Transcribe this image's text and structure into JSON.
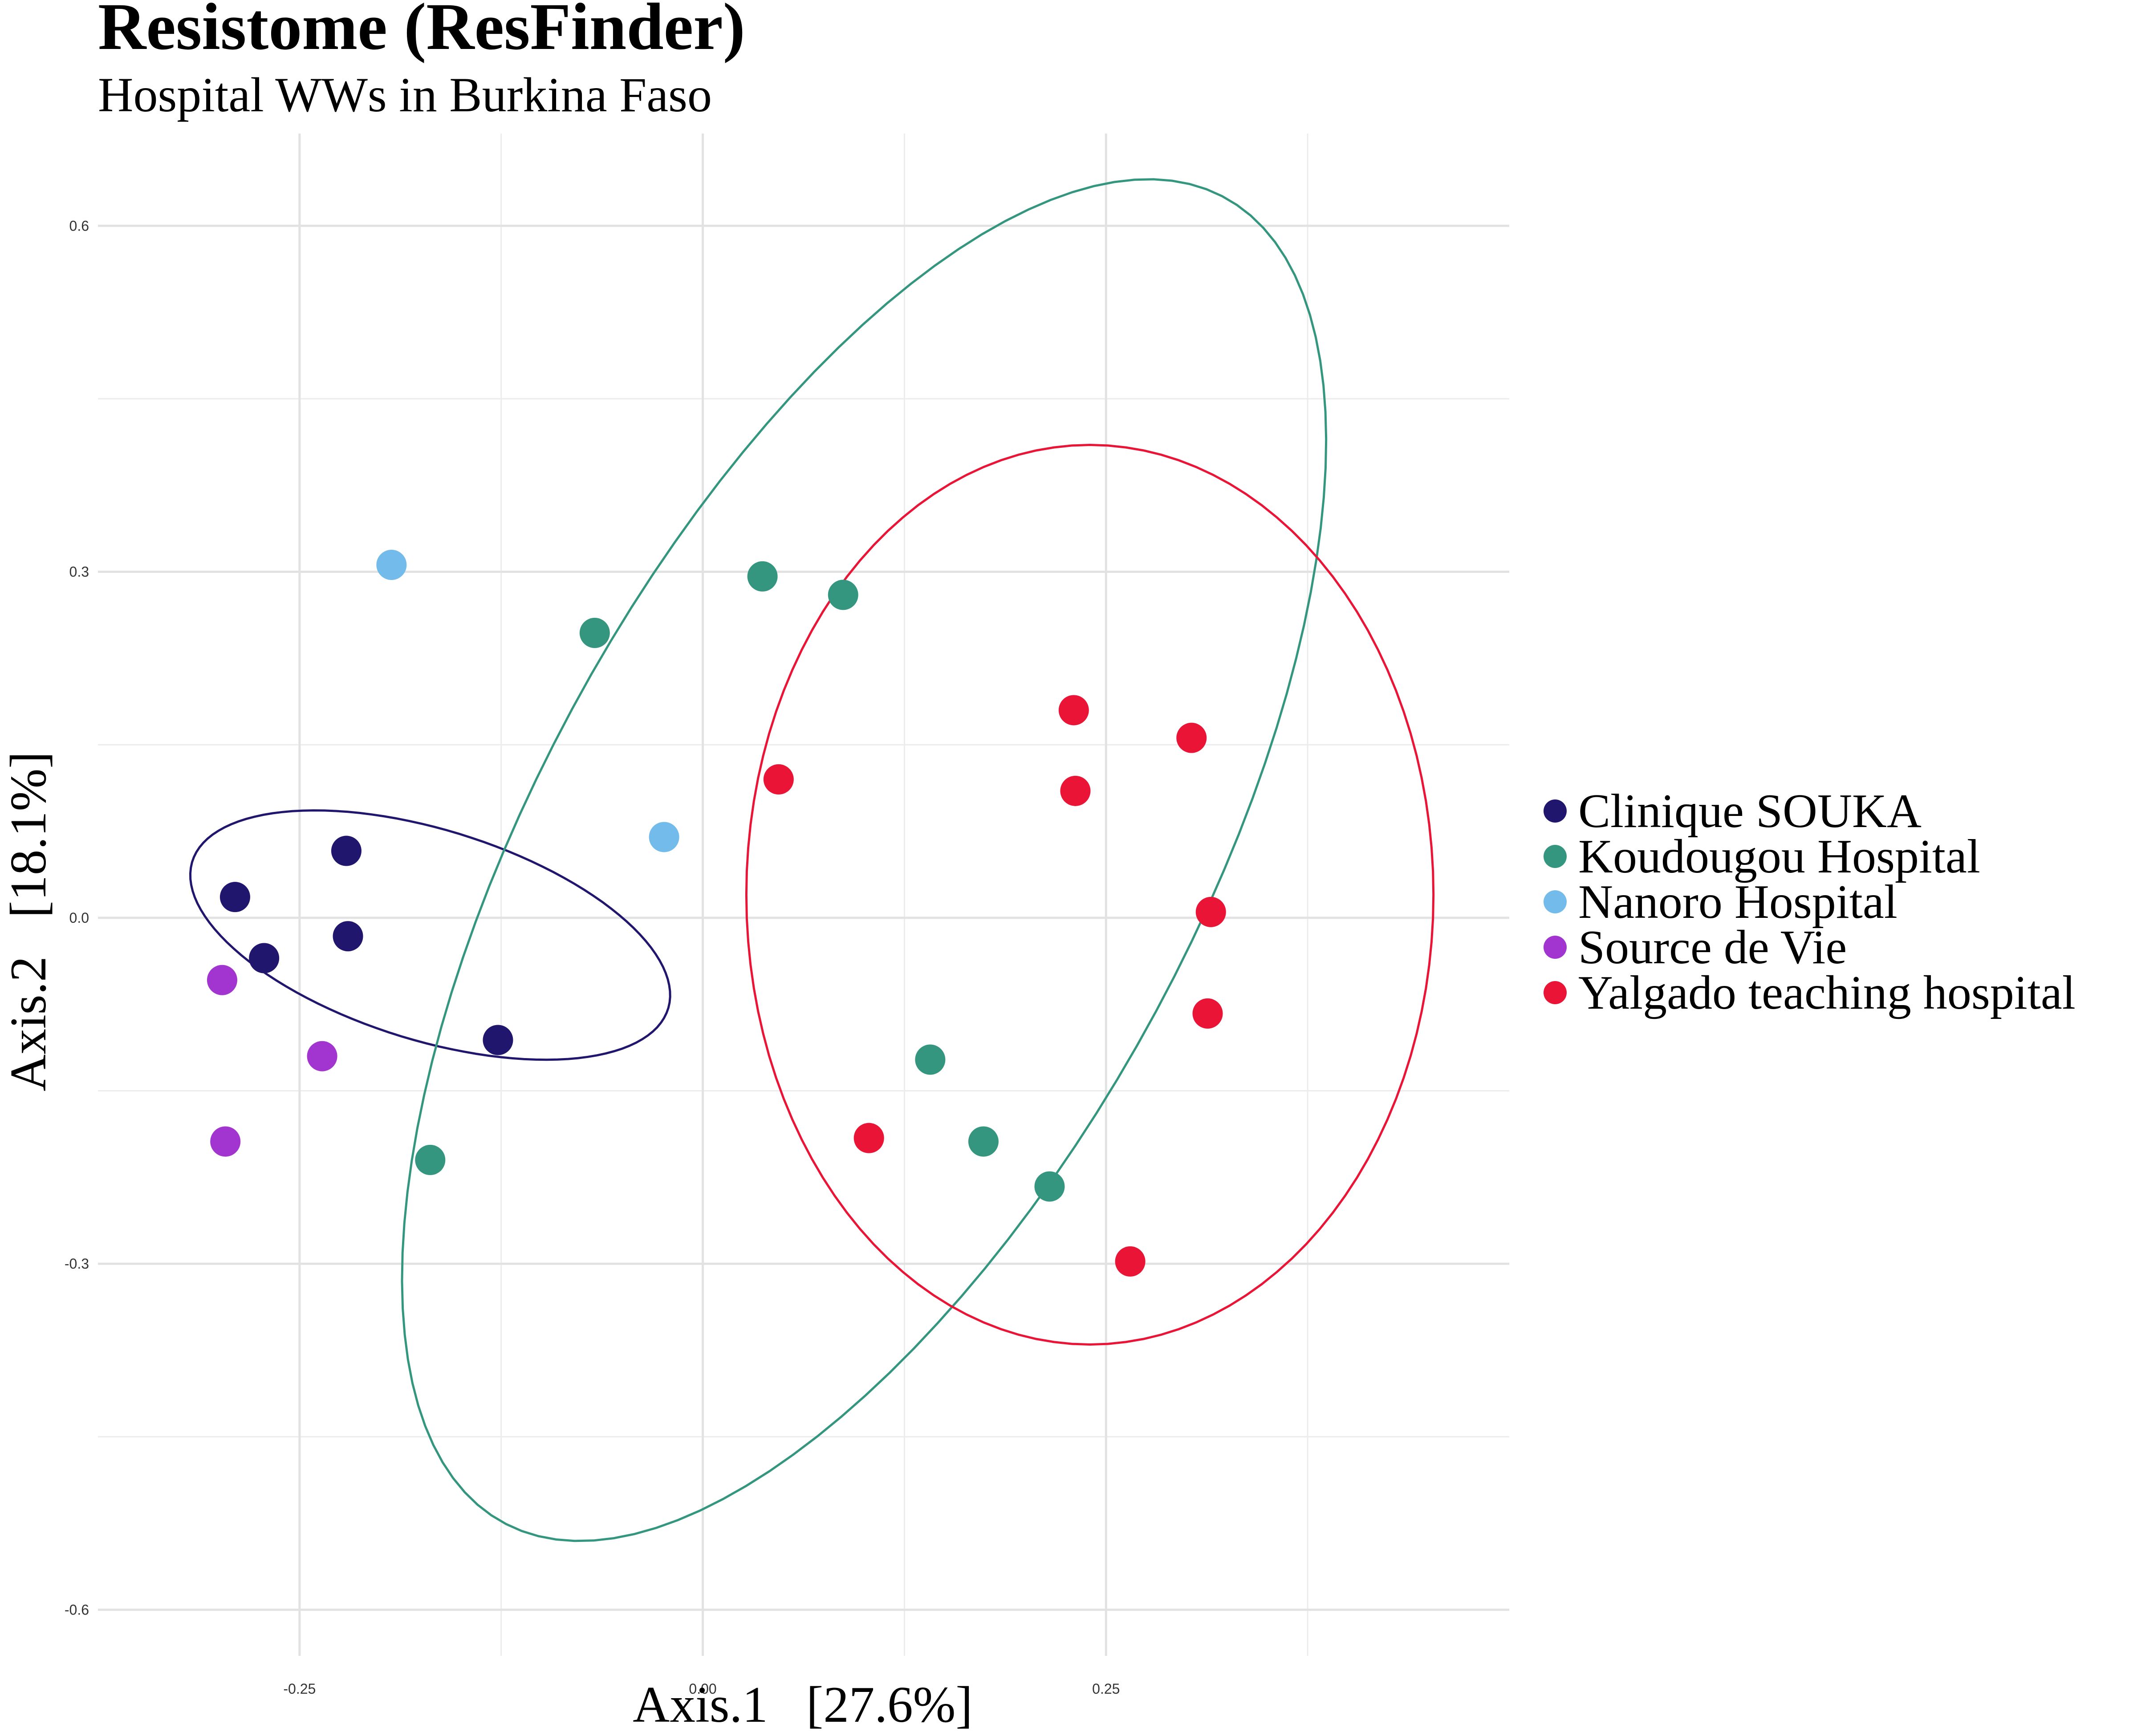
{
  "chart_data": {
    "type": "scatter",
    "title": "Resistome (ResFinder)",
    "subtitle": "Hospital WWs in Burkina Faso",
    "xlabel": "Axis.1   [27.6%]",
    "ylabel": "Axis.2   [18.1%]",
    "xlim": [
      -0.375,
      0.5
    ],
    "ylim": [
      -0.64,
      0.68
    ],
    "x_ticks": [
      -0.25,
      0.0,
      0.25
    ],
    "x_tick_labels": [
      "-0.25",
      "0.00",
      "0.25"
    ],
    "y_ticks": [
      -0.6,
      -0.3,
      0.0,
      0.3,
      0.6
    ],
    "y_tick_labels": [
      "-0.6",
      "-0.3",
      "0.0",
      "0.3",
      "0.6"
    ],
    "grid": true,
    "legend_position": "right",
    "series": [
      {
        "name": "Clinique SOUKA",
        "color": "#21166e",
        "points": [
          [
            -0.29,
            0.018
          ],
          [
            -0.272,
            -0.035
          ],
          [
            -0.221,
            0.058
          ],
          [
            -0.22,
            -0.016
          ],
          [
            -0.127,
            -0.106
          ]
        ],
        "ellipse": {
          "cx": -0.169,
          "cy": -0.015,
          "rx": 0.162,
          "ry": 0.087,
          "angle": -28
        }
      },
      {
        "name": "Koudougou Hospital",
        "color": "#35967f",
        "points": [
          [
            -0.067,
            0.247
          ],
          [
            0.037,
            0.296
          ],
          [
            0.087,
            0.28
          ],
          [
            0.141,
            -0.123
          ],
          [
            0.174,
            -0.194
          ],
          [
            0.215,
            -0.233
          ],
          [
            -0.169,
            -0.21
          ]
        ],
        "ellipse": {
          "cx": 0.1,
          "cy": 0.05,
          "rx": 0.215,
          "ry": 0.62,
          "angle": -19
        }
      },
      {
        "name": "Nanoro Hospital",
        "color": "#73bbea",
        "points": [
          [
            -0.193,
            0.306
          ],
          [
            -0.024,
            0.07
          ]
        ]
      },
      {
        "name": "Source de Vie",
        "color": "#a234cf",
        "points": [
          [
            -0.298,
            -0.054
          ],
          [
            -0.236,
            -0.12
          ],
          [
            -0.296,
            -0.194
          ]
        ]
      },
      {
        "name": "Yalgado teaching hospital",
        "color": "#e91436",
        "points": [
          [
            0.047,
            0.12
          ],
          [
            0.23,
            0.18
          ],
          [
            0.231,
            0.11
          ],
          [
            0.303,
            0.156
          ],
          [
            0.315,
            0.005
          ],
          [
            0.313,
            -0.083
          ],
          [
            0.103,
            -0.191
          ],
          [
            0.265,
            -0.298
          ]
        ],
        "ellipse": {
          "cx": 0.24,
          "cy": 0.02,
          "rx": 0.213,
          "ry": 0.39,
          "angle": 0
        }
      }
    ]
  }
}
